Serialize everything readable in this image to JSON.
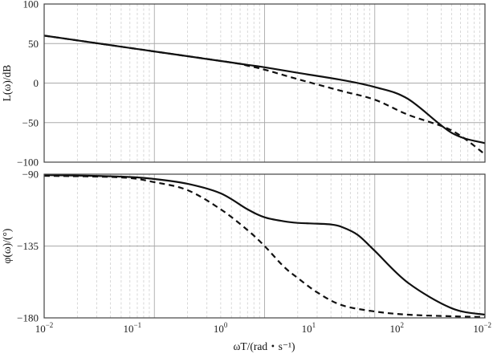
{
  "chart_data": [
    {
      "type": "line",
      "panel": "magnitude",
      "xscale": "log",
      "xlim": [
        0.01,
        100
      ],
      "ylim": [
        -100,
        100
      ],
      "yticks": [
        100,
        50,
        0,
        -50,
        -100
      ],
      "ylabel": "L(ω)/dB",
      "grid": true,
      "series": [
        {
          "style": "solid",
          "x": [
            0.01,
            0.02,
            0.05,
            0.1,
            0.2,
            0.5,
            0.7,
            1,
            2,
            5,
            10,
            20,
            50,
            100
          ],
          "y": [
            60,
            54,
            46,
            40,
            34,
            26,
            23,
            20,
            13,
            4,
            -5,
            -20,
            -63,
            -76
          ]
        },
        {
          "style": "dashed",
          "x": [
            0.01,
            0.1,
            0.5,
            0.7,
            1,
            2,
            5,
            10,
            20,
            50,
            100
          ],
          "y": [
            60,
            40,
            26,
            22,
            17,
            5,
            -10,
            -21,
            -40,
            -60,
            -90
          ]
        }
      ]
    },
    {
      "type": "line",
      "panel": "phase",
      "xscale": "log",
      "xlim": [
        0.01,
        100
      ],
      "ylim": [
        -180,
        -90
      ],
      "yticks": [
        -90,
        -135,
        -180
      ],
      "ylabel": "φ(ω)/(°)",
      "xlabel": "ωT/(rad・s⁻¹)",
      "grid": true,
      "series": [
        {
          "style": "solid",
          "x": [
            0.01,
            0.05,
            0.1,
            0.2,
            0.4,
            0.7,
            1,
            1.5,
            2,
            3,
            4,
            5,
            7,
            10,
            20,
            50,
            100
          ],
          "y": [
            -90.5,
            -91.5,
            -93,
            -96,
            -102,
            -112,
            -117,
            -119.5,
            -120.5,
            -121,
            -121.5,
            -123,
            -128,
            -138,
            -158,
            -174,
            -178
          ]
        },
        {
          "style": "dashed",
          "x": [
            0.01,
            0.05,
            0.1,
            0.2,
            0.4,
            0.7,
            1,
            1.5,
            2,
            3,
            5,
            10,
            20,
            50,
            100
          ],
          "y": [
            -91,
            -92,
            -95,
            -100,
            -112,
            -125,
            -135,
            -148,
            -155,
            -164,
            -172,
            -176,
            -178,
            -179,
            -179.5
          ]
        }
      ]
    }
  ],
  "axes": {
    "top": {
      "ylabel": "L(ω)/dB",
      "yticks": [
        "100",
        "50",
        "0",
        "−50",
        "−100"
      ]
    },
    "bottom": {
      "ylabel": "φ(ω)/(°)",
      "yticks": [
        "−90",
        "−135",
        "−180"
      ],
      "xlabel": "ωT/(rad・s⁻¹)"
    },
    "xticks": [
      {
        "base": "10",
        "exp": "−2"
      },
      {
        "base": "10",
        "exp": "−1"
      },
      {
        "base": "10",
        "exp": "0"
      },
      {
        "base": "10",
        "exp": "1"
      },
      {
        "base": "10",
        "exp": "2"
      },
      {
        "base": "10",
        "exp": "−2"
      }
    ]
  }
}
